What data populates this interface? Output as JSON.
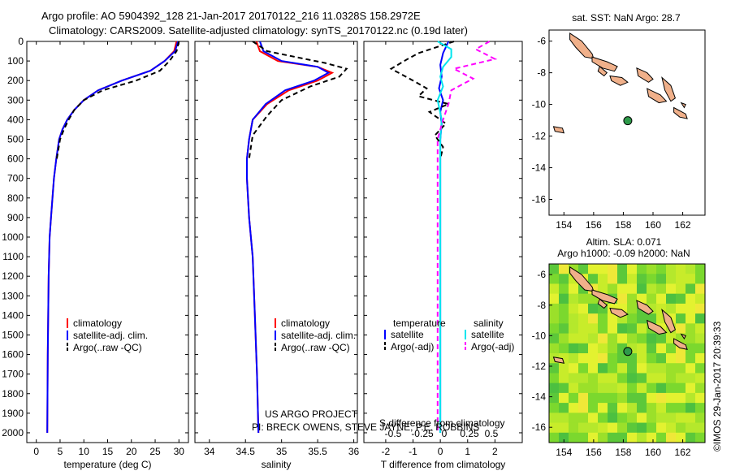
{
  "header": {
    "line1": "Argo profile: AO 5904392_128 21-Jan-2017 20170122_216 11.0328S 158.2972E",
    "line2": "Climatology: CARS2009. Satellite-adjusted climatology: synTS_20170122.nc (0.19d later)"
  },
  "side_stamp": "©IMOS 29-Jan-2017 20:39:33",
  "map_top": {
    "title": "sat. SST: NaN Argo: 28.7"
  },
  "map_bottom": {
    "title1": "Altim. SLA: 0.071",
    "title2": "Argo h1000: -0.09 h2000: NaN"
  },
  "chart_data": [
    {
      "id": "temperature",
      "type": "line",
      "xlabel": "temperature (deg C)",
      "ylabel": "",
      "xlim": [
        -2,
        32
      ],
      "ylim": [
        2050,
        0
      ],
      "xticks": [
        0,
        5,
        10,
        15,
        20,
        25,
        30
      ],
      "xticklabels": [
        "0",
        "5",
        "10",
        "15",
        "20",
        "25",
        "30"
      ],
      "yticks": [
        0,
        100,
        200,
        300,
        400,
        500,
        600,
        700,
        800,
        900,
        1000,
        1100,
        1200,
        1300,
        1400,
        1500,
        1600,
        1700,
        1800,
        1900,
        2000
      ],
      "yticklabels": [
        "0",
        "100",
        "200",
        "300",
        "400",
        "500",
        "600",
        "700",
        "800",
        "900",
        "1000",
        "1100",
        "1200",
        "1300",
        "1400",
        "1500",
        "1600",
        "1700",
        "1800",
        "1900",
        "2000"
      ],
      "legend": [
        "climatology",
        "satellite-adj. clim.",
        "Argo(..raw -QC)"
      ],
      "series": [
        {
          "name": "climatology",
          "color": "#ff0000",
          "dash": "",
          "x": [
            29.5,
            29,
            27,
            24,
            18,
            13,
            10,
            8,
            6.5,
            5.5,
            4.8,
            4.2,
            3.7,
            3.4,
            3.1,
            2.8,
            2.6,
            2.4,
            2.3
          ],
          "y": [
            0,
            50,
            100,
            150,
            200,
            250,
            300,
            350,
            400,
            450,
            500,
            600,
            700,
            800,
            900,
            1000,
            1200,
            1600,
            2000
          ]
        },
        {
          "name": "satellite-adj. clim.",
          "color": "#0000ff",
          "dash": "",
          "x": [
            29.8,
            29.2,
            27,
            24,
            18,
            13,
            10,
            8,
            6.5,
            5.5,
            4.8,
            4.2,
            3.7,
            3.4,
            3.1,
            2.8,
            2.6,
            2.4,
            2.3
          ],
          "y": [
            0,
            50,
            100,
            150,
            200,
            250,
            300,
            350,
            400,
            450,
            500,
            600,
            700,
            800,
            900,
            1000,
            1200,
            1600,
            2000
          ]
        },
        {
          "name": "Argo(..raw -QC)",
          "color": "#000000",
          "dash": "6,4",
          "x": [
            30,
            29.5,
            28,
            26,
            21,
            14,
            10,
            8,
            6.8,
            5.8,
            5,
            4.3
          ],
          "y": [
            0,
            50,
            100,
            150,
            200,
            250,
            300,
            350,
            400,
            450,
            500,
            600
          ]
        }
      ]
    },
    {
      "id": "salinity",
      "type": "line",
      "xlabel": "salinity",
      "ylabel": "",
      "xlim": [
        33.8,
        36.05
      ],
      "ylim": [
        2050,
        0
      ],
      "xticks": [
        34,
        34.5,
        35,
        35.5,
        36
      ],
      "xticklabels": [
        "34",
        "34.5",
        "35",
        "35.5",
        "36"
      ],
      "legend": [
        "climatology",
        "satellite-adj. clim.",
        "Argo(..raw -QC)"
      ],
      "annotation1": "US ARGO PROJECT",
      "annotation2": "PI: BRECK OWENS, STEVE JAYNE, P.E. ROBBINS",
      "series": [
        {
          "name": "climatology",
          "color": "#ff0000",
          "dash": "",
          "x": [
            34.65,
            34.7,
            34.95,
            35.5,
            35.7,
            35.5,
            35.1,
            34.8,
            34.6,
            34.55,
            34.52,
            34.52,
            34.55,
            34.6,
            34.63,
            34.66,
            34.68
          ],
          "y": [
            0,
            50,
            100,
            130,
            160,
            200,
            250,
            320,
            400,
            500,
            600,
            700,
            900,
            1100,
            1400,
            1700,
            2000
          ]
        },
        {
          "name": "satellite-adj. clim.",
          "color": "#0000ff",
          "dash": "",
          "x": [
            34.7,
            34.75,
            35,
            35.5,
            35.65,
            35.45,
            35.05,
            34.78,
            34.6,
            34.55,
            34.52,
            34.52,
            34.55,
            34.6,
            34.63,
            34.66,
            34.68
          ],
          "y": [
            0,
            50,
            100,
            130,
            160,
            200,
            250,
            320,
            400,
            500,
            600,
            700,
            900,
            1100,
            1400,
            1700,
            2000
          ]
        },
        {
          "name": "Argo(..raw -QC)",
          "color": "#000000",
          "dash": "6,4",
          "x": [
            34.6,
            34.8,
            35.2,
            35.6,
            35.9,
            35.8,
            35.4,
            35,
            34.8,
            34.6,
            34.55
          ],
          "y": [
            0,
            50,
            80,
            110,
            140,
            180,
            230,
            300,
            380,
            480,
            600
          ]
        }
      ]
    },
    {
      "id": "difference",
      "type": "line",
      "xlabel": "T difference from climatology",
      "xlabel_top": "S difference from climatology",
      "xlim": [
        -2.8,
        3
      ],
      "ylim": [
        2050,
        0
      ],
      "xticks": [
        -2,
        -1,
        0,
        1,
        2
      ],
      "xticklabels": [
        "-2",
        "-1",
        "0",
        "1",
        "2"
      ],
      "top_ticklabels": [
        "-0.5",
        "-0.25",
        "0",
        "0.25",
        "0.5"
      ],
      "legend_title_t": "temperature",
      "legend_title_s": "salinity",
      "legend": [
        "satellite",
        "Argo(-adj)",
        "satellite",
        "Argo(-adj)"
      ],
      "series": [
        {
          "name": "T satellite",
          "color": "#0000ff",
          "dash": "",
          "x": [
            0.3,
            0.1,
            0,
            0.05,
            -0.05,
            0.1,
            0,
            0.05,
            0,
            0,
            0,
            0,
            0
          ],
          "y": [
            0,
            60,
            120,
            180,
            240,
            300,
            360,
            420,
            500,
            600,
            800,
            1200,
            2000
          ]
        },
        {
          "name": "T Argo(-adj)",
          "color": "#000000",
          "dash": "6,4",
          "x": [
            0.5,
            -0.8,
            -1.2,
            -1.8,
            -1.4,
            -1.0,
            -0.5,
            -0.8,
            0.3,
            -0.4,
            0.2,
            -0.2,
            0.1,
            0
          ],
          "y": [
            0,
            60,
            90,
            140,
            170,
            200,
            240,
            280,
            320,
            360,
            420,
            480,
            540,
            600
          ]
        },
        {
          "name": "S satellite",
          "color": "#00e5ee",
          "dash": "",
          "x": [
            -0.1,
            0.4,
            0.4,
            0.1,
            0,
            0.1,
            -0.1,
            0.05,
            0,
            0,
            0,
            0
          ],
          "y": [
            0,
            40,
            80,
            130,
            180,
            230,
            300,
            400,
            500,
            700,
            1200,
            2000
          ]
        },
        {
          "name": "S Argo(-adj)",
          "color": "#ff00ff",
          "dash": "6,4",
          "x": [
            1.8,
            1.3,
            2.0,
            0.5,
            1.2,
            0.4,
            0.3,
            0.1,
            -0.1,
            -0.1,
            -0.1
          ],
          "y": [
            0,
            40,
            90,
            140,
            190,
            250,
            320,
            400,
            500,
            1100,
            2000
          ]
        }
      ]
    },
    {
      "id": "map_sst",
      "type": "scatter",
      "xlim": [
        153,
        163.5
      ],
      "ylim": [
        -17,
        -5.3
      ],
      "xticks": [
        154,
        156,
        158,
        160,
        162
      ],
      "xticklabels": [
        "154",
        "156",
        "158",
        "160",
        "162"
      ],
      "yticks": [
        -6,
        -8,
        -10,
        -12,
        -14,
        -16
      ],
      "yticklabels": [
        "-6",
        "-8",
        "-10",
        "-12",
        "-14",
        "-16"
      ],
      "points": [
        {
          "lon": 158.3,
          "lat": -11.03
        }
      ]
    },
    {
      "id": "map_sla",
      "type": "heatmap",
      "xlim": [
        153,
        163.5
      ],
      "ylim": [
        -17,
        -5.3
      ],
      "xticks": [
        154,
        156,
        158,
        160,
        162
      ],
      "xticklabels": [
        "154",
        "156",
        "158",
        "160",
        "162"
      ],
      "yticks": [
        -6,
        -8,
        -10,
        -12,
        -14,
        -16
      ],
      "yticklabels": [
        "-6",
        "-8",
        "-10",
        "-12",
        "-14",
        "-16"
      ],
      "points": [
        {
          "lon": 158.3,
          "lat": -11.03
        }
      ]
    }
  ]
}
